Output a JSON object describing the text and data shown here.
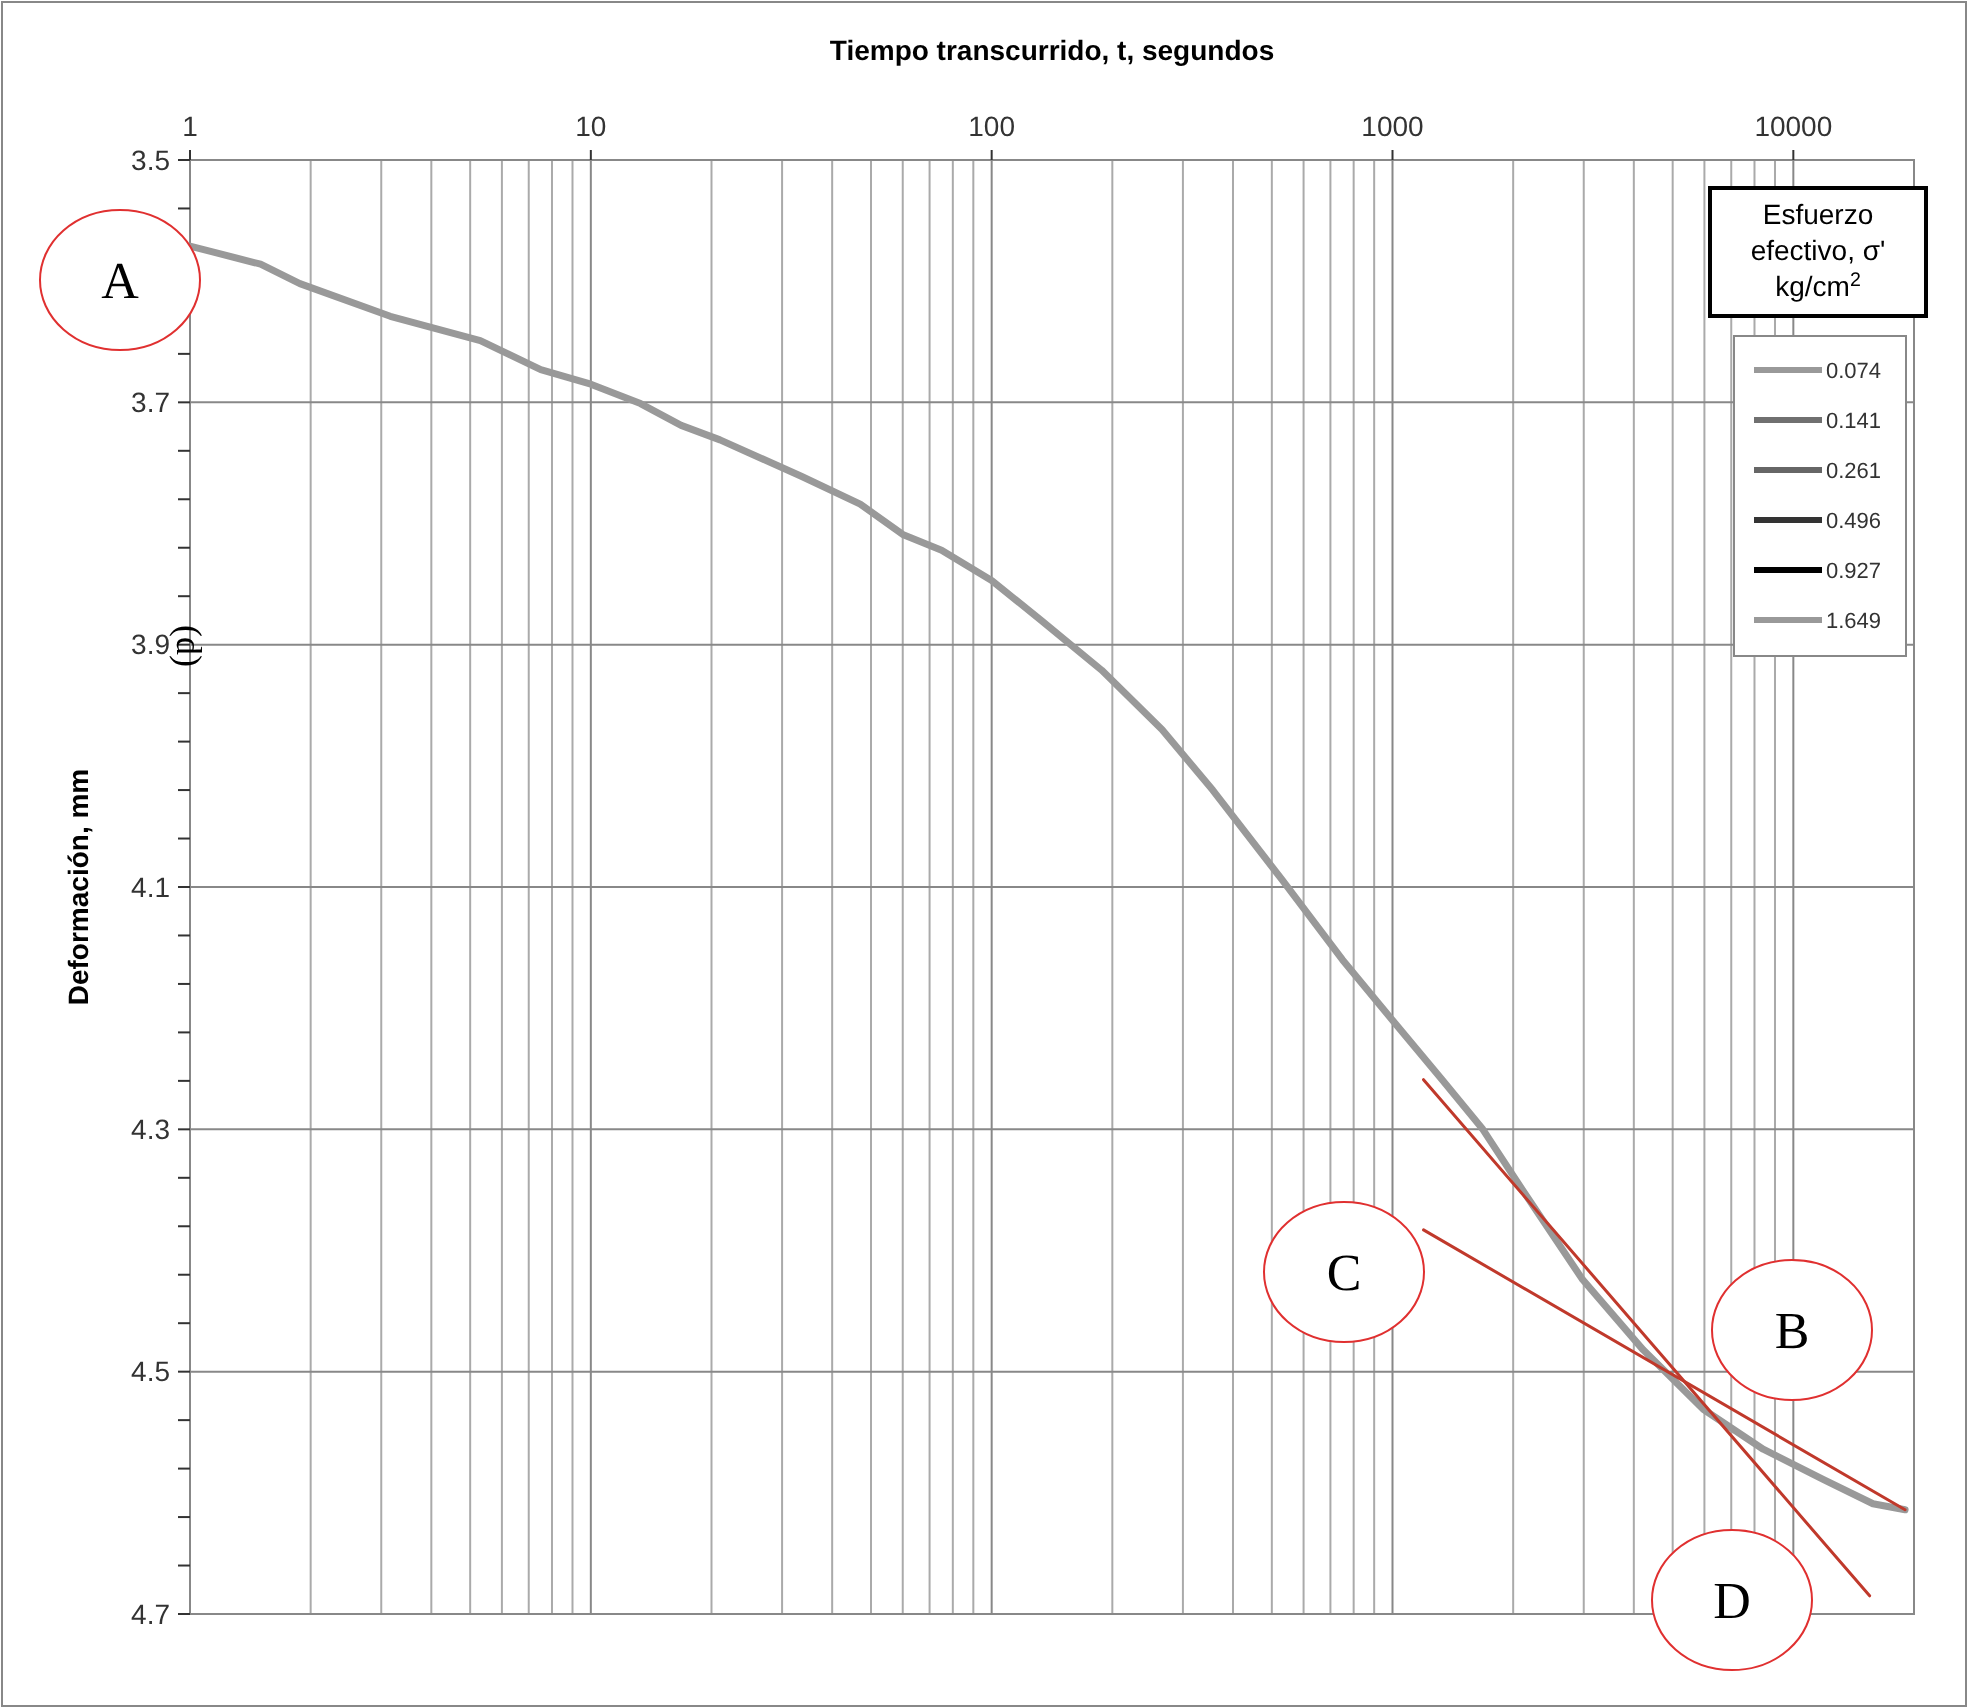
{
  "chart_data": {
    "type": "line",
    "xlabel": "Tiempo transcurrido, t, segundos",
    "ylabel": "Deformación, mm",
    "legend_title": "Esfuerzo efectivo, σ' kg/cm$^{2}$",
    "legend": "top right",
    "log": "x",
    "grid": true,
    "marker": "none",
    "line_style": "solid",
    "xlim": [
      1,
      20000
    ],
    "xticks": [
      1,
      10,
      100,
      1000,
      10000
    ],
    "ylim": [
      4.7,
      3.5
    ],
    "yticks": [
      3.5,
      {
        "value": 3.54,
        "label": null
      },
      {
        "value": 3.58,
        "label": null
      },
      {
        "value": 3.62,
        "label": null
      },
      {
        "value": 3.66,
        "label": null
      },
      3.7,
      {
        "value": 3.74,
        "label": null
      },
      {
        "value": 3.78,
        "label": null
      },
      {
        "value": 3.82,
        "label": null
      },
      {
        "value": 3.86,
        "label": null
      },
      3.9,
      {
        "value": 3.94,
        "label": null
      },
      {
        "value": 3.98,
        "label": null
      },
      {
        "value": 4.02,
        "label": null
      },
      {
        "value": 4.06,
        "label": null
      },
      4.1,
      {
        "value": 4.14,
        "label": null
      },
      {
        "value": 4.18,
        "label": null
      },
      {
        "value": 4.22,
        "label": null
      },
      {
        "value": 4.26,
        "label": null
      },
      4.3,
      {
        "value": 4.34,
        "label": null
      },
      {
        "value": 4.38,
        "label": null
      },
      {
        "value": 4.42,
        "label": null
      },
      {
        "value": 4.46,
        "label": null
      },
      4.5,
      {
        "value": 4.54,
        "label": null
      },
      {
        "value": 4.58,
        "label": null
      },
      {
        "value": 4.62,
        "label": null
      },
      {
        "value": 4.66,
        "label": null
      },
      4.7
    ],
    "series": [
      {
        "name": "0.074",
        "color": "#999999"
      },
      {
        "name": "0.141",
        "color": "#707070"
      },
      {
        "name": "0.261",
        "color": "#666666"
      },
      {
        "name": "0.496",
        "color": "#333333"
      },
      {
        "name": "0.927",
        "color": "#000000"
      },
      {
        "name": "1.649",
        "color": "#999999",
        "x": [
          1,
          1.5,
          1.88,
          3.16,
          5.3,
          7.5,
          10,
          13.3,
          16.8,
          21,
          33.5,
          47,
          60,
          75,
          100,
          133,
          188,
          266,
          356,
          530,
          750,
          1000,
          1330,
          1680,
          2110,
          2980,
          4220,
          5960,
          8410,
          11900,
          15800,
          19000
        ],
        "values": [
          3.571,
          3.586,
          3.602,
          3.629,
          3.649,
          3.673,
          3.685,
          3.701,
          3.719,
          3.731,
          3.761,
          3.784,
          3.809,
          3.822,
          3.847,
          3.88,
          3.921,
          3.97,
          4.02,
          4.094,
          4.16,
          4.21,
          4.259,
          4.3,
          4.35,
          4.424,
          4.482,
          4.531,
          4.564,
          4.589,
          4.609,
          4.614
        ]
      },
      {
        "type": "line",
        "color": "#c0392b",
        "x": [
          1195,
          15500
        ],
        "values": [
          4.259,
          4.685
        ]
      },
      {
        "type": "line",
        "color": "#c0392b",
        "x": [
          1195,
          19000
        ],
        "values": [
          4.383,
          4.614
        ]
      }
    ],
    "annotations": [
      "A",
      "B",
      "C",
      "D",
      "(d)"
    ]
  }
}
